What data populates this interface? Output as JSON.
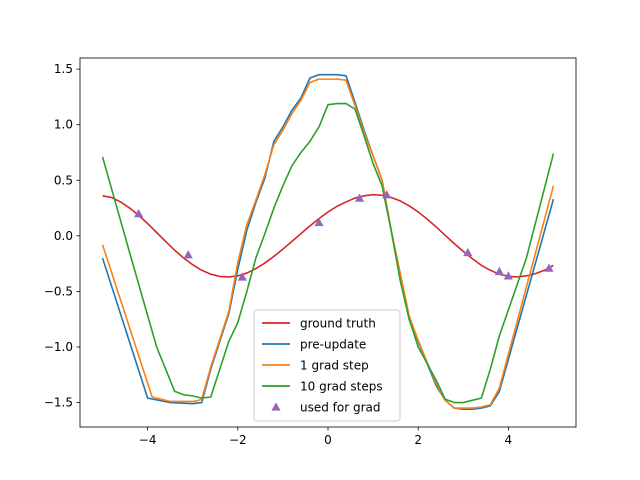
{
  "chart_data": {
    "type": "line",
    "title": "",
    "xlabel": "",
    "ylabel": "",
    "xlim": [
      -5.5,
      5.5
    ],
    "ylim": [
      -1.72,
      1.6
    ],
    "xticks": [
      -4,
      -2,
      0,
      2,
      4
    ],
    "yticks": [
      -1.5,
      -1.0,
      -0.5,
      0.0,
      0.5,
      1.0,
      1.5
    ],
    "xtick_labels": [
      "−4",
      "−2",
      "0",
      "2",
      "4"
    ],
    "ytick_labels": [
      "−1.5",
      "−1.0",
      "−0.5",
      "0.0",
      "0.5",
      "1.0",
      "1.5"
    ],
    "legend_position": "lower-center",
    "series": [
      {
        "name": "ground truth",
        "kind": "line",
        "color": "#d62728",
        "x": [
          -5.0,
          -4.8,
          -4.6,
          -4.4,
          -4.2,
          -4.0,
          -3.8,
          -3.6,
          -3.4,
          -3.2,
          -3.0,
          -2.8,
          -2.6,
          -2.4,
          -2.2,
          -2.0,
          -1.8,
          -1.6,
          -1.4,
          -1.2,
          -1.0,
          -0.8,
          -0.6,
          -0.4,
          -0.2,
          0.0,
          0.2,
          0.4,
          0.6,
          0.8,
          1.0,
          1.2,
          1.4,
          1.6,
          1.8,
          2.0,
          2.2,
          2.4,
          2.6,
          2.8,
          3.0,
          3.2,
          3.4,
          3.6,
          3.8,
          4.0,
          4.2,
          4.4,
          4.6,
          4.8,
          5.0
        ],
        "values": [
          0.36,
          0.345,
          0.305,
          0.25,
          0.185,
          0.11,
          0.03,
          -0.05,
          -0.13,
          -0.2,
          -0.26,
          -0.31,
          -0.345,
          -0.365,
          -0.37,
          -0.36,
          -0.335,
          -0.295,
          -0.245,
          -0.185,
          -0.12,
          -0.05,
          0.02,
          0.09,
          0.155,
          0.215,
          0.265,
          0.305,
          0.34,
          0.36,
          0.37,
          0.365,
          0.345,
          0.315,
          0.27,
          0.215,
          0.15,
          0.08,
          0.005,
          -0.07,
          -0.14,
          -0.205,
          -0.265,
          -0.31,
          -0.345,
          -0.365,
          -0.37,
          -0.36,
          -0.34,
          -0.31,
          -0.265
        ]
      },
      {
        "name": "pre-update",
        "kind": "line",
        "color": "#1f77b4",
        "x": [
          -5.0,
          -4.0,
          -3.5,
          -3.0,
          -2.8,
          -2.6,
          -2.4,
          -2.2,
          -2.0,
          -1.8,
          -1.6,
          -1.4,
          -1.2,
          -1.0,
          -0.8,
          -0.6,
          -0.4,
          -0.2,
          0.0,
          0.2,
          0.4,
          0.6,
          0.8,
          1.0,
          1.2,
          1.4,
          1.6,
          1.8,
          2.0,
          2.2,
          2.4,
          2.6,
          2.8,
          3.0,
          3.2,
          3.4,
          3.6,
          3.8,
          5.0
        ],
        "values": [
          -0.2,
          -1.46,
          -1.5,
          -1.51,
          -1.5,
          -1.2,
          -0.95,
          -0.7,
          -0.3,
          0.05,
          0.3,
          0.52,
          0.85,
          0.98,
          1.13,
          1.24,
          1.42,
          1.45,
          1.45,
          1.45,
          1.44,
          1.2,
          0.95,
          0.72,
          0.5,
          0.05,
          -0.35,
          -0.75,
          -0.95,
          -1.15,
          -1.35,
          -1.48,
          -1.55,
          -1.56,
          -1.56,
          -1.55,
          -1.53,
          -1.4,
          0.33
        ]
      },
      {
        "name": "1 grad step",
        "kind": "line",
        "color": "#ff7f0e",
        "x": [
          -5.0,
          -3.9,
          -3.5,
          -2.95,
          -2.8,
          -2.6,
          -2.4,
          -2.2,
          -2.0,
          -1.8,
          -1.6,
          -1.4,
          -1.2,
          -1.0,
          -0.8,
          -0.6,
          -0.4,
          -0.2,
          0.0,
          0.2,
          0.4,
          0.6,
          0.8,
          1.0,
          1.2,
          1.4,
          1.6,
          1.8,
          2.0,
          2.2,
          2.4,
          2.6,
          2.8,
          3.0,
          3.2,
          3.4,
          3.6,
          3.8,
          5.0
        ],
        "values": [
          -0.08,
          -1.45,
          -1.49,
          -1.49,
          -1.47,
          -1.18,
          -0.93,
          -0.68,
          -0.24,
          0.1,
          0.32,
          0.55,
          0.82,
          0.95,
          1.1,
          1.22,
          1.38,
          1.41,
          1.41,
          1.41,
          1.4,
          1.17,
          0.93,
          0.72,
          0.5,
          0.05,
          -0.33,
          -0.72,
          -0.94,
          -1.14,
          -1.33,
          -1.48,
          -1.55,
          -1.55,
          -1.55,
          -1.54,
          -1.52,
          -1.37,
          0.45
        ]
      },
      {
        "name": "10 grad steps",
        "kind": "line",
        "color": "#2ca02c",
        "x": [
          -5.0,
          -4.4,
          -3.8,
          -3.4,
          -3.2,
          -3.0,
          -2.8,
          -2.6,
          -2.4,
          -2.2,
          -2.0,
          -1.8,
          -1.6,
          -1.4,
          -1.2,
          -1.0,
          -0.8,
          -0.6,
          -0.4,
          -0.2,
          0.0,
          0.2,
          0.4,
          0.6,
          0.8,
          1.0,
          1.2,
          1.4,
          1.6,
          1.8,
          2.0,
          2.2,
          2.4,
          2.6,
          2.8,
          3.0,
          3.2,
          3.4,
          3.6,
          3.8,
          4.4,
          5.0
        ],
        "values": [
          0.71,
          -0.15,
          -1.0,
          -1.4,
          -1.43,
          -1.44,
          -1.46,
          -1.45,
          -1.2,
          -0.95,
          -0.78,
          -0.5,
          -0.2,
          0.02,
          0.25,
          0.45,
          0.63,
          0.75,
          0.85,
          0.98,
          1.18,
          1.19,
          1.19,
          1.14,
          0.9,
          0.65,
          0.45,
          0.05,
          -0.4,
          -0.75,
          -1.0,
          -1.15,
          -1.3,
          -1.47,
          -1.5,
          -1.5,
          -1.48,
          -1.46,
          -1.2,
          -0.9,
          -0.2,
          0.74
        ]
      },
      {
        "name": "used for grad",
        "kind": "scatter",
        "marker": "triangle",
        "color": "#9467bd",
        "x": [
          -4.2,
          -3.1,
          -1.9,
          -0.2,
          0.7,
          1.3,
          3.1,
          3.8,
          4.0,
          4.9
        ],
        "values": [
          0.2,
          -0.17,
          -0.37,
          0.12,
          0.34,
          0.37,
          -0.15,
          -0.32,
          -0.36,
          -0.29
        ]
      }
    ]
  }
}
